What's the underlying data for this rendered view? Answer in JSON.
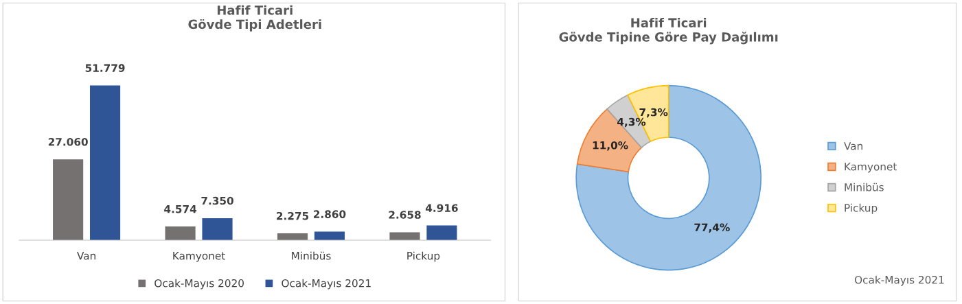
{
  "chart_data": [
    {
      "type": "bar",
      "title": "Hafif Ticari\nGövde Tipi Adetleri",
      "categories": [
        "Van",
        "Kamyonet",
        "Minibüs",
        "Pickup"
      ],
      "series": [
        {
          "name": "Ocak-Mayıs 2020",
          "color": "#767171",
          "values": [
            27060,
            4574,
            2275,
            2658
          ],
          "value_labels": [
            "27.060",
            "4.574",
            "2.275",
            "2.658"
          ]
        },
        {
          "name": "Ocak-Mayıs 2021",
          "color": "#2f5597",
          "values": [
            51779,
            7350,
            2860,
            4916
          ],
          "value_labels": [
            "51.779",
            "7.350",
            "2.860",
            "4.916"
          ]
        }
      ],
      "legend": "bottom",
      "grid": false,
      "tick_labels": "x"
    },
    {
      "type": "donut",
      "title": "Hafif Ticari\nGövde Tipine Göre Pay Dağılımı",
      "categories": [
        "Van",
        "Kamyonet",
        "Minibüs",
        "Pickup"
      ],
      "values": [
        77.4,
        11.0,
        4.3,
        7.3
      ],
      "value_labels": [
        "77,4%",
        "11,0%",
        "4,3%",
        "7,3%"
      ],
      "colors": [
        "#9dc3e6",
        "#f4b183",
        "#d0d0d0",
        "#ffe699"
      ],
      "legend": "right",
      "annotations": [
        "Ocak-Mayıs 2021"
      ]
    }
  ]
}
